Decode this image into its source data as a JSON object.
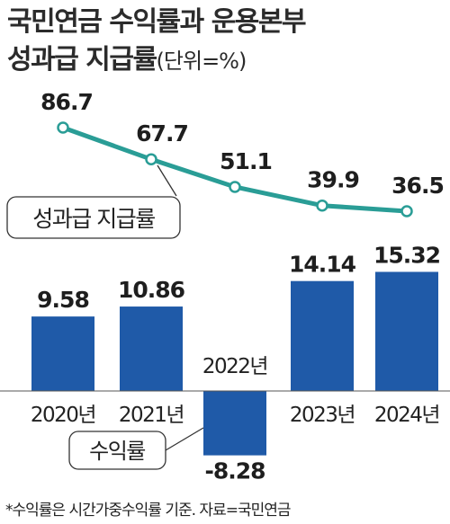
{
  "title": {
    "line1": "국민연금 수익률과 운용본부",
    "line2": "성과급 지급률",
    "unit": "(단위=%)"
  },
  "chart_data": [
    {
      "type": "line",
      "series_label": "성과급 지급률",
      "x": [
        "2020년",
        "2021년",
        "2022년",
        "2023년",
        "2024년"
      ],
      "values": [
        86.7,
        67.7,
        51.1,
        39.9,
        36.5
      ],
      "value_labels": [
        "86.7",
        "67.7",
        "51.1",
        "39.9",
        "36.5"
      ],
      "color": "#2a9d96"
    },
    {
      "type": "bar",
      "series_label": "수익률",
      "categories": [
        "2020년",
        "2021년",
        "2022년",
        "2023년",
        "2024년"
      ],
      "values": [
        9.58,
        10.86,
        -8.28,
        14.14,
        15.32
      ],
      "value_labels": [
        "9.58",
        "10.86",
        "-8.28",
        "14.14",
        "15.32"
      ],
      "color": "#1f5aa8"
    }
  ],
  "footnote": "*수익률은 시간가중수익률 기준. 자료=국민연금"
}
